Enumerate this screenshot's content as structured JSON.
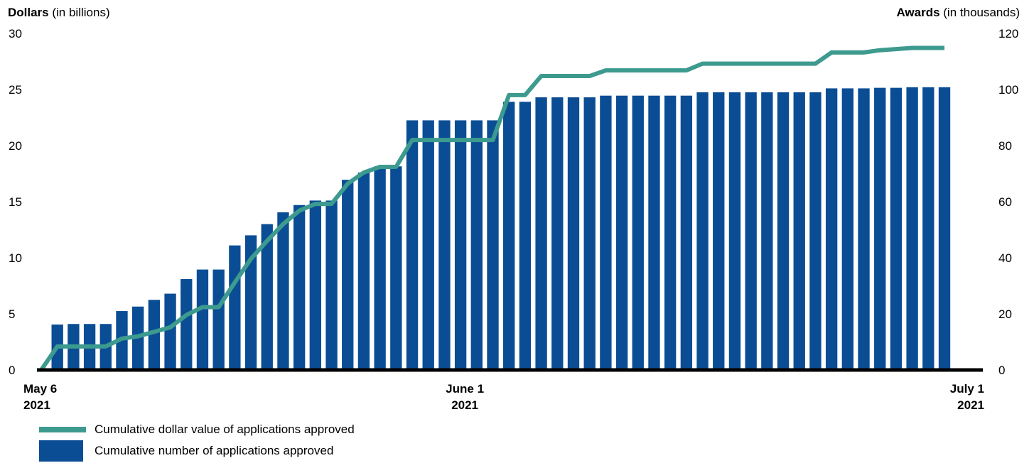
{
  "chart_data": {
    "type": "bar+line",
    "left_axis": {
      "title_bold": "Dollars",
      "title_rest": " (in billions)",
      "ylim": [
        0,
        30
      ],
      "ticks": [
        0,
        5,
        10,
        15,
        20,
        25,
        30
      ]
    },
    "right_axis": {
      "title_bold": "Awards",
      "title_rest": " (in thousands)",
      "ylim": [
        0,
        120
      ],
      "ticks": [
        0,
        20,
        40,
        60,
        80,
        100,
        120
      ]
    },
    "x_labels": [
      {
        "line1": "May 6",
        "line2": "2021",
        "index": 0
      },
      {
        "line1": "June 1",
        "line2": "2021",
        "index": 26
      },
      {
        "line1": "July 1",
        "line2": "2021",
        "index": 56
      }
    ],
    "series": [
      {
        "name": "Cumulative number of applications approved",
        "kind": "bar",
        "axis": "right",
        "color": "#0a4d94",
        "values": [
          0,
          16.2,
          16.4,
          16.4,
          16.4,
          21,
          22.6,
          25,
          27.2,
          32.4,
          35.8,
          35.8,
          44.4,
          48,
          52,
          56.2,
          58.8,
          60.4,
          60.4,
          67.8,
          70.4,
          72.6,
          72.6,
          89,
          89,
          89,
          89,
          89,
          89,
          95.6,
          95.6,
          97.2,
          97.2,
          97.2,
          97.2,
          97.8,
          97.8,
          97.8,
          97.8,
          97.8,
          97.8,
          99,
          99,
          99,
          99,
          99,
          99,
          99,
          99,
          100.4,
          100.4,
          100.4,
          100.6,
          100.6,
          100.8,
          100.8,
          100.8
        ]
      },
      {
        "name": "Cumulative dollar value of applications approved",
        "kind": "line",
        "axis": "left",
        "color": "#3d9a8e",
        "values": [
          0,
          2.1,
          2.1,
          2.1,
          2.1,
          2.8,
          3.0,
          3.4,
          3.8,
          4.9,
          5.6,
          5.6,
          7.8,
          9.9,
          11.5,
          13.0,
          14.2,
          14.8,
          14.8,
          16.6,
          17.6,
          18.1,
          18.1,
          20.5,
          20.5,
          20.5,
          20.5,
          20.5,
          20.5,
          24.5,
          24.5,
          26.2,
          26.2,
          26.2,
          26.2,
          26.7,
          26.7,
          26.7,
          26.7,
          26.7,
          26.7,
          27.3,
          27.3,
          27.3,
          27.3,
          27.3,
          27.3,
          27.3,
          27.3,
          28.3,
          28.3,
          28.3,
          28.5,
          28.6,
          28.7,
          28.7,
          28.7
        ]
      }
    ],
    "grid": false,
    "legend_position": "bottom-left"
  }
}
